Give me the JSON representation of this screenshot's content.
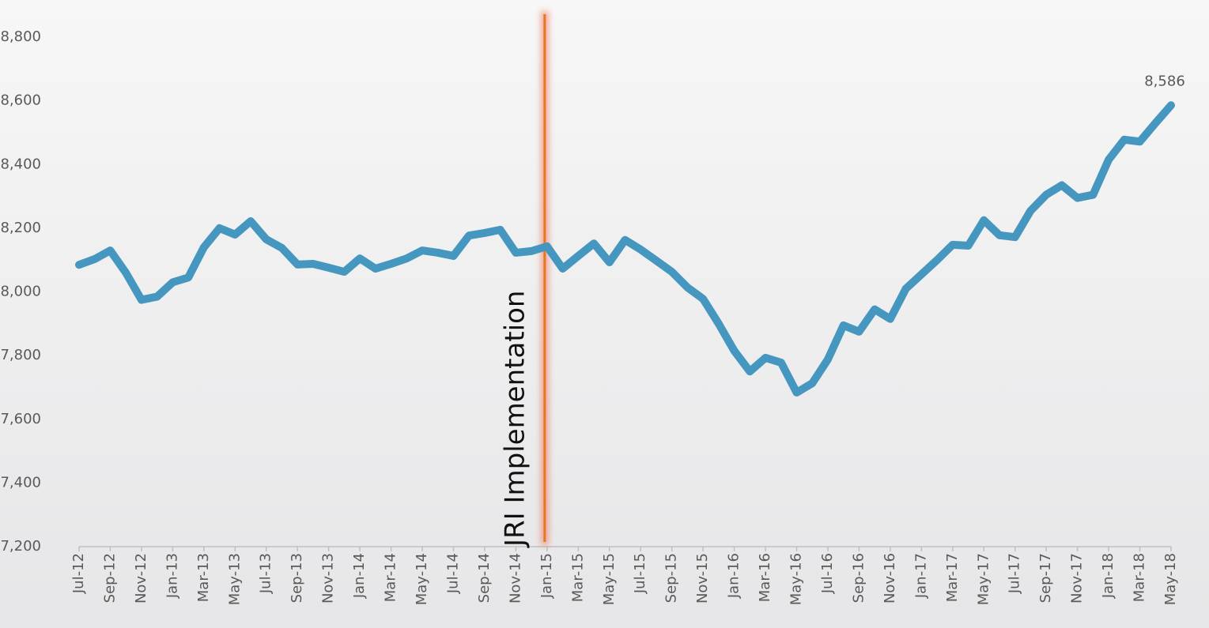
{
  "chart_data": {
    "type": "line",
    "categories": [
      "Jul-12",
      null,
      "Sep-12",
      null,
      "Nov-12",
      null,
      "Jan-13",
      null,
      "Mar-13",
      null,
      "May-13",
      null,
      "Jul-13",
      null,
      "Sep-13",
      null,
      "Nov-13",
      null,
      "Jan-14",
      null,
      "Mar-14",
      null,
      "May-14",
      null,
      "Jul-14",
      null,
      "Sep-14",
      null,
      "Nov-14",
      null,
      "Jan-15",
      null,
      "Mar-15",
      null,
      "May-15",
      null,
      "Jul-15",
      null,
      "Sep-15",
      null,
      "Nov-15",
      null,
      "Jan-16",
      null,
      "Mar-16",
      null,
      "May-16",
      null,
      "Jul-16",
      null,
      "Sep-16",
      null,
      "Nov-16",
      null,
      "Jan-17",
      null,
      "Mar-17",
      null,
      "May-17",
      null,
      "Jul-17",
      null,
      "Sep-17",
      null,
      "Nov-17",
      null,
      "Jan-18",
      null,
      "Mar-18",
      null,
      "May-18"
    ],
    "series": [
      {
        "color": "#4597bf",
        "values": [
          8085,
          8103,
          8130,
          8060,
          7975,
          7985,
          8030,
          8045,
          8140,
          8200,
          8180,
          8222,
          8165,
          8138,
          8086,
          8088,
          8076,
          8063,
          8105,
          8073,
          8088,
          8105,
          8130,
          8123,
          8113,
          8177,
          8185,
          8195,
          8123,
          8128,
          8143,
          8073,
          8113,
          8152,
          8093,
          8163,
          8133,
          8098,
          8063,
          8014,
          7978,
          7900,
          7815,
          7750,
          7793,
          7778,
          7684,
          7713,
          7788,
          7895,
          7875,
          7945,
          7915,
          8010,
          8055,
          8100,
          8148,
          8145,
          8225,
          8178,
          8172,
          8255,
          8305,
          8335,
          8295,
          8305,
          8415,
          8478,
          8472,
          8530,
          8586
        ],
        "value_labels": [
          null,
          null,
          null,
          null,
          null,
          null,
          null,
          null,
          null,
          null,
          null,
          null,
          null,
          null,
          null,
          null,
          null,
          null,
          null,
          null,
          null,
          null,
          null,
          null,
          null,
          null,
          null,
          null,
          null,
          null,
          null,
          null,
          null,
          null,
          null,
          null,
          null,
          null,
          null,
          null,
          null,
          null,
          null,
          null,
          null,
          null,
          null,
          null,
          null,
          null,
          null,
          null,
          null,
          null,
          null,
          null,
          null,
          null,
          null,
          null,
          null,
          null,
          null,
          null,
          null,
          null,
          null,
          null,
          null,
          null,
          "8,586"
        ]
      }
    ],
    "ylim": [
      7200,
      8800
    ],
    "yticks": [
      {
        "value": 7200,
        "label": "7,200"
      },
      {
        "value": 7400,
        "label": "7,400"
      },
      {
        "value": 7600,
        "label": "7,600"
      },
      {
        "value": 7800,
        "label": "7,800"
      },
      {
        "value": 8000,
        "label": "8,000"
      },
      {
        "value": 8200,
        "label": "8,200"
      },
      {
        "value": 8400,
        "label": "8,400"
      },
      {
        "value": 8600,
        "label": "8,600"
      },
      {
        "value": 8800,
        "label": "8,800"
      }
    ],
    "annotations": [
      {
        "text": "JRI Implementation",
        "category": "Jan-15",
        "color": "#e87722"
      }
    ]
  }
}
